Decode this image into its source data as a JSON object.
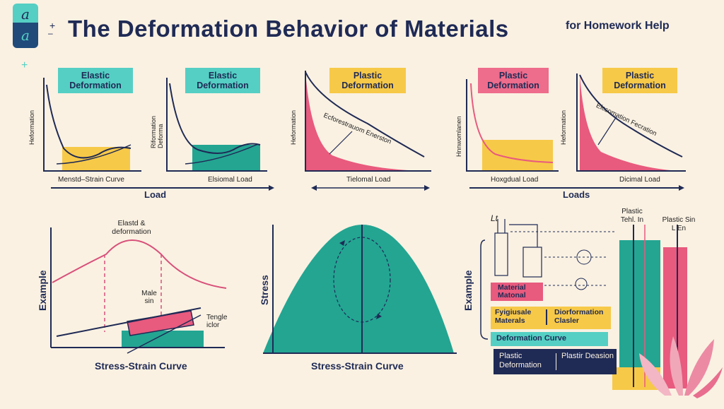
{
  "header": {
    "logo_glyphs": [
      "a",
      "a"
    ],
    "title": "The Deformation Behavior of Materials",
    "subtitle": "for Homework Help"
  },
  "top_panels": {
    "tags": [
      "Elastic Deformation",
      "Elastic Deformation",
      "Plastic Deformation",
      "Plastic Deformation",
      "Plastic Deformation"
    ],
    "y_labels": [
      "Heformation",
      "Riformation Deforma",
      "Heformation",
      "Hnnwomlanen",
      "Heformation"
    ],
    "x_labels": [
      "Menstd–Strain Curve",
      "Elsiomal Load",
      "Tielomal Load",
      "Hoxgdual Load",
      "Dicimal Load"
    ],
    "curve_annotations": [
      "Ecforestrauom Enerston",
      "Elcsomation Fecration"
    ],
    "axis_captions": [
      "Load",
      "Loads"
    ]
  },
  "bottom_left": {
    "peak_label": "Elastd & deformation",
    "y_label": "Example",
    "mid_label": "Male sin",
    "side_label": "Tengle iclor",
    "caption": "Stress-Strain Curve"
  },
  "bottom_center": {
    "y_label": "Stress",
    "caption": "Stress-Strain Curve"
  },
  "bottom_right": {
    "y_label": "Example",
    "corner_label": "Lt",
    "column_labels": [
      "Plastic Tehl. In",
      "Plastic Sin L En"
    ],
    "material_label": "Material Matonal",
    "fyi_label": "Fyigiusale Materals",
    "deformation_label": "Diorformation Clasler",
    "curve_label": "Deformation Curve",
    "dark_left": "Plastic Deformation",
    "dark_right": "Plastir Deasion"
  },
  "colors": {
    "background": "#faf1e2",
    "navy": "#1f2a55",
    "teal": "#23a592",
    "teal_light": "#55cfc4",
    "pink": "#e85a7e",
    "yellow": "#f7c948"
  }
}
